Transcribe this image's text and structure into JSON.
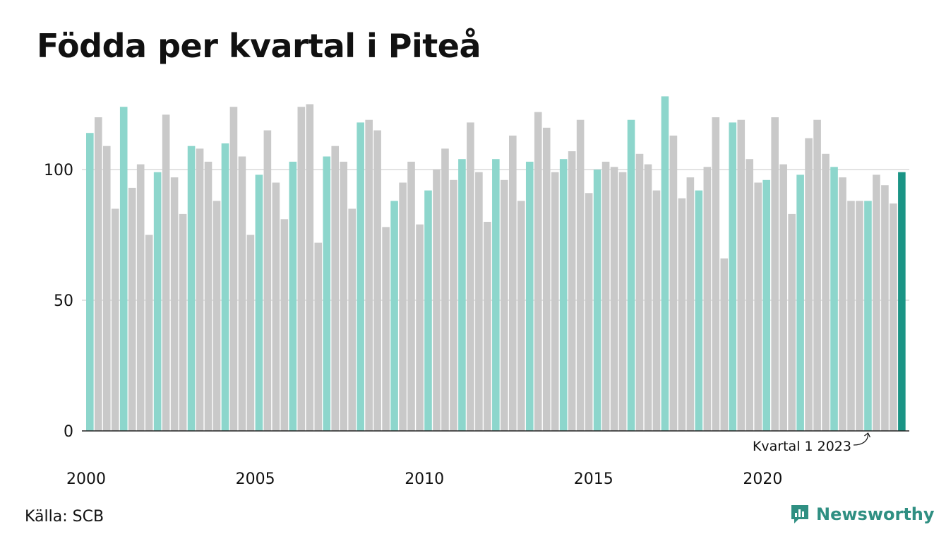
{
  "title": "Födda per kvartal i Piteå",
  "source": "Källa: SCB",
  "brand": "Newsworthy",
  "annotation": "Kvartal 1 2023",
  "colors": {
    "q1": "#8dd6cc",
    "other": "#c9c9c9",
    "highlight": "#1a9485",
    "grid": "#e3e3e3",
    "axis": "#222222",
    "brand": "#2f8f82"
  },
  "chart_data": {
    "type": "bar",
    "x_start": "2000 Q1",
    "x_end": "2024 Q1",
    "x_tick_labels": [
      "2000",
      "2005",
      "2010",
      "2015",
      "2020"
    ],
    "y_ticks": [
      0,
      50,
      100
    ],
    "ylim": [
      0,
      130
    ],
    "grid": true,
    "highlight_note": "Kvartal 1 2023",
    "values": [
      114,
      120,
      109,
      85,
      124,
      93,
      102,
      75,
      99,
      121,
      97,
      83,
      109,
      108,
      103,
      88,
      110,
      124,
      105,
      75,
      98,
      115,
      95,
      81,
      103,
      124,
      125,
      72,
      105,
      109,
      103,
      85,
      118,
      119,
      115,
      78,
      88,
      95,
      103,
      79,
      92,
      100,
      108,
      96,
      104,
      118,
      99,
      80,
      104,
      96,
      113,
      88,
      103,
      122,
      116,
      99,
      104,
      107,
      119,
      91,
      100,
      103,
      101,
      99,
      119,
      106,
      102,
      92,
      128,
      113,
      89,
      97,
      92,
      101,
      120,
      66,
      118,
      119,
      104,
      95,
      96,
      120,
      102,
      83,
      98,
      112,
      119,
      106,
      101,
      97,
      88,
      88,
      88,
      98,
      94,
      87,
      99
    ]
  }
}
